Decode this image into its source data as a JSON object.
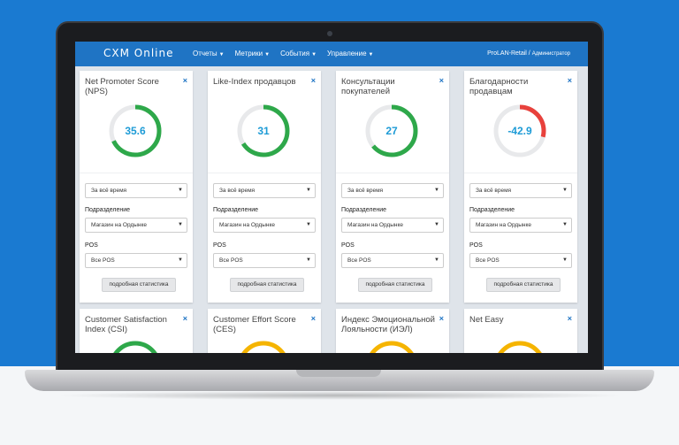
{
  "app": {
    "logo": "CXM Online",
    "nav": [
      "Отчеты",
      "Метрики",
      "События",
      "Управление"
    ],
    "user_org": "ProLAN-Retail",
    "user_role": "Администратор"
  },
  "cards": [
    {
      "title": "Net Promoter Score (NPS)",
      "value": "35.6",
      "gauge_fraction": 0.68,
      "gauge_color": "#2ea84a",
      "period": "За всё время",
      "dept_label": "Подразделение",
      "dept_value": "Магазин на Ордынке",
      "pos_label": "POS",
      "pos_value": "Все POS",
      "button": "подробная статистика"
    },
    {
      "title": "Like-Index продавцов",
      "value": "31",
      "gauge_fraction": 0.66,
      "gauge_color": "#2ea84a",
      "period": "За всё время",
      "dept_label": "Подразделение",
      "dept_value": "Магазин на Ордынке",
      "pos_label": "POS",
      "pos_value": "Все POS",
      "button": "подробная статистика"
    },
    {
      "title": "Консультации покупателей",
      "value": "27",
      "gauge_fraction": 0.64,
      "gauge_color": "#2ea84a",
      "period": "За всё время",
      "dept_label": "Подразделение",
      "dept_value": "Магазин на Ордынке",
      "pos_label": "POS",
      "pos_value": "Все POS",
      "button": "подробная статистика"
    },
    {
      "title": "Благодарности продавцам",
      "value": "-42.9",
      "gauge_fraction": 0.29,
      "gauge_color": "#e8413c",
      "period": "За всё время",
      "dept_label": "Подразделение",
      "dept_value": "Магазин на Ордынке",
      "pos_label": "POS",
      "pos_value": "Все POS",
      "button": "подробная статистика"
    }
  ],
  "bottom_cards": [
    {
      "title": "Customer Satisfaction Index (CSI)",
      "gauge_color": "#2ea84a"
    },
    {
      "title": "Customer Effort Score (CES)",
      "gauge_color": "#f5b400"
    },
    {
      "title": "Индекс Эмоциональной Лояльности (ИЭЛ)",
      "gauge_color": "#f5b400"
    },
    {
      "title": "Net Easy",
      "gauge_color": "#f5b400"
    }
  ],
  "close_glyph": "×"
}
